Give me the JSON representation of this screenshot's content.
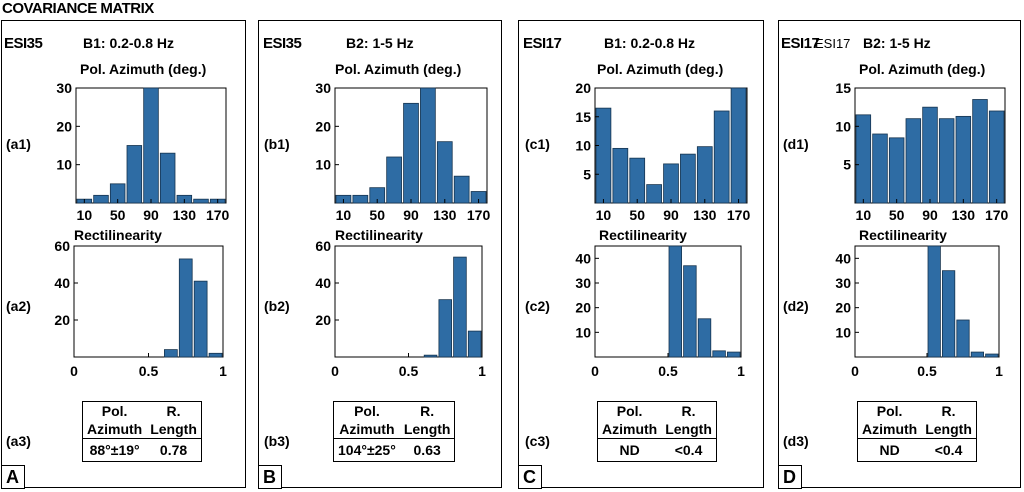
{
  "title": "COVARIANCE MATRIX",
  "colors": {
    "bar": "#2e6ca4",
    "bar_edge": "#16344f"
  },
  "chart_data": [
    {
      "panel": "A",
      "station": "ESI35",
      "band": "B1: 0.2-0.8 Hz",
      "azimuth": {
        "type": "bar",
        "label": "(a1)",
        "title": "Pol. Azimuth (deg.)",
        "categories": [
          10,
          30,
          50,
          70,
          90,
          110,
          130,
          150,
          170
        ],
        "values": [
          1,
          2,
          5,
          15,
          30,
          13,
          2,
          1,
          1
        ],
        "ylim": [
          0,
          30
        ],
        "yticks": [
          10,
          20,
          30
        ],
        "xticks": [
          10,
          50,
          90,
          130,
          170
        ]
      },
      "rectilinearity": {
        "type": "bar",
        "label": "(a2)",
        "title": "Rectilinearity",
        "categories": [
          0.05,
          0.15,
          0.25,
          0.35,
          0.45,
          0.55,
          0.65,
          0.75,
          0.85,
          0.95
        ],
        "values": [
          0,
          0,
          0,
          0,
          0,
          0,
          4,
          53,
          41,
          2
        ],
        "ylim": [
          0,
          60
        ],
        "yticks": [
          20,
          40,
          60
        ],
        "xticks": [
          "0",
          "0.5",
          "1"
        ]
      },
      "table": {
        "label": "(a3)",
        "h1a": "Pol.",
        "h1b": "Azimuth",
        "h2a": "R.",
        "h2b": "Length",
        "az": "88°±19°",
        "len": "0.78"
      }
    },
    {
      "panel": "B",
      "station": "ESI35",
      "band": "B2: 1-5 Hz",
      "azimuth": {
        "type": "bar",
        "label": "(b1)",
        "title": "Pol. Azimuth (deg.)",
        "categories": [
          10,
          30,
          50,
          70,
          90,
          110,
          130,
          150,
          170
        ],
        "values": [
          2,
          2,
          4,
          12,
          26,
          30,
          16,
          7,
          3
        ],
        "ylim": [
          0,
          30
        ],
        "yticks": [
          10,
          20,
          30
        ],
        "xticks": [
          10,
          50,
          90,
          130,
          170
        ]
      },
      "rectilinearity": {
        "type": "bar",
        "label": "(b2)",
        "title": "Rectilinearity",
        "categories": [
          0.05,
          0.15,
          0.25,
          0.35,
          0.45,
          0.55,
          0.65,
          0.75,
          0.85,
          0.95
        ],
        "values": [
          0,
          0,
          0,
          0,
          0,
          0,
          1,
          31,
          54,
          14
        ],
        "ylim": [
          0,
          60
        ],
        "yticks": [
          20,
          40,
          60
        ],
        "xticks": [
          "0",
          "0.5",
          "1"
        ]
      },
      "table": {
        "label": "(b3)",
        "h1a": "Pol.",
        "h1b": "Azimuth",
        "h2a": "R.",
        "h2b": "Length",
        "az": "104°±25°",
        "len": "0.63"
      }
    },
    {
      "panel": "C",
      "station": "ESI17",
      "band": "B1: 0.2-0.8 Hz",
      "azimuth": {
        "type": "bar",
        "label": "(c1)",
        "title": "Pol. Azimuth (deg.)",
        "categories": [
          10,
          30,
          50,
          70,
          90,
          110,
          130,
          150,
          170
        ],
        "values": [
          16.5,
          9.5,
          7.8,
          3.2,
          6.8,
          8.5,
          9.8,
          16,
          20
        ],
        "ylim": [
          0,
          20
        ],
        "yticks": [
          5,
          10,
          15,
          20
        ],
        "xticks": [
          10,
          50,
          90,
          130,
          170
        ]
      },
      "rectilinearity": {
        "type": "bar",
        "label": "(c2)",
        "title": "Rectilinearity",
        "categories": [
          0.05,
          0.15,
          0.25,
          0.35,
          0.45,
          0.55,
          0.65,
          0.75,
          0.85,
          0.95
        ],
        "values": [
          0,
          0,
          0,
          0,
          0,
          45,
          37,
          15.5,
          2.5,
          2
        ],
        "ylim": [
          0,
          45
        ],
        "yticks": [
          10,
          20,
          30,
          40
        ],
        "xticks": [
          "0",
          "0.5",
          "1"
        ]
      },
      "table": {
        "label": "(c3)",
        "h1a": "Pol.",
        "h1b": "Azimuth",
        "h2a": "R.",
        "h2b": "Length",
        "az": "ND",
        "len": "<0.4"
      }
    },
    {
      "panel": "D",
      "station": "ESI17",
      "station_overlay": "ESI17",
      "band": "B2: 1-5 Hz",
      "azimuth": {
        "type": "bar",
        "label": "(d1)",
        "title": "Pol. Azimuth (deg.)",
        "categories": [
          10,
          30,
          50,
          70,
          90,
          110,
          130,
          150,
          170
        ],
        "values": [
          11.5,
          9,
          8.5,
          11,
          12.5,
          11,
          11.3,
          13.5,
          12
        ],
        "ylim": [
          0,
          15
        ],
        "yticks": [
          5,
          10,
          15
        ],
        "xticks": [
          10,
          50,
          90,
          130,
          170
        ]
      },
      "rectilinearity": {
        "type": "bar",
        "label": "(d2)",
        "title": "Rectilinearity",
        "categories": [
          0.05,
          0.15,
          0.25,
          0.35,
          0.45,
          0.55,
          0.65,
          0.75,
          0.85,
          0.95
        ],
        "values": [
          0,
          0,
          0,
          0,
          0,
          45,
          35,
          15,
          2,
          1.2
        ],
        "ylim": [
          0,
          45
        ],
        "yticks": [
          10,
          20,
          30,
          40
        ],
        "xticks": [
          "0",
          "0.5",
          "1"
        ]
      },
      "table": {
        "label": "(d3)",
        "h1a": "Pol.",
        "h1b": "Azimuth",
        "h2a": "R.",
        "h2b": "Length",
        "az": "ND",
        "len": "<0.4"
      }
    }
  ]
}
